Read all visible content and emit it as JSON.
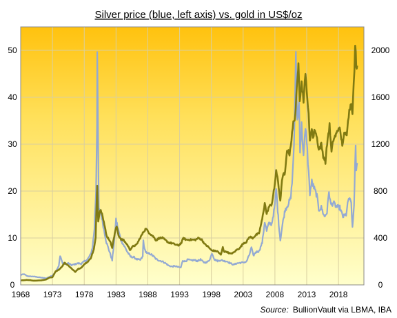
{
  "chart_data": {
    "type": "line",
    "title": "Silver price (blue, left axis) vs. gold in US$/oz",
    "source_label": "Source:",
    "source_text": "BullionVault via LBMA, IBA",
    "x_axis": {
      "range": [
        1968,
        2022
      ],
      "ticks": [
        1968,
        1973,
        1978,
        1983,
        1988,
        1993,
        1998,
        2003,
        2008,
        2013,
        2018
      ]
    },
    "y_left": {
      "range": [
        0,
        55
      ],
      "ticks": [
        0,
        10,
        20,
        30,
        40,
        50
      ]
    },
    "y_right": {
      "range": [
        0,
        2200
      ],
      "ticks": [
        0,
        400,
        800,
        1200,
        1600,
        2000
      ]
    },
    "grid": true,
    "colors": {
      "silver": "#93A9D3",
      "gold": "#807A12",
      "background_top": "#FFC20E",
      "background_bottom": "#FFFFCC",
      "grid": "#D9CFA0"
    },
    "series": [
      {
        "axis": "left",
        "points": [
          [
            1968.0,
            2.1
          ],
          [
            1968.5,
            2.3
          ],
          [
            1969.0,
            1.9
          ],
          [
            1969.5,
            1.8
          ],
          [
            1970.0,
            1.8
          ],
          [
            1970.5,
            1.7
          ],
          [
            1971.0,
            1.6
          ],
          [
            1971.5,
            1.5
          ],
          [
            1972.0,
            1.4
          ],
          [
            1972.5,
            1.7
          ],
          [
            1973.0,
            2.0
          ],
          [
            1973.5,
            2.8
          ],
          [
            1974.0,
            4.0
          ],
          [
            1974.2,
            6.3
          ],
          [
            1974.6,
            4.6
          ],
          [
            1975.0,
            4.4
          ],
          [
            1975.5,
            4.6
          ],
          [
            1976.0,
            4.2
          ],
          [
            1976.5,
            4.4
          ],
          [
            1977.0,
            4.6
          ],
          [
            1977.5,
            4.5
          ],
          [
            1978.0,
            5.0
          ],
          [
            1978.5,
            5.4
          ],
          [
            1979.0,
            6.5
          ],
          [
            1979.3,
            8.0
          ],
          [
            1979.6,
            12.0
          ],
          [
            1979.85,
            20.0
          ],
          [
            1980.0,
            34.0
          ],
          [
            1980.05,
            49.5
          ],
          [
            1980.15,
            35.0
          ],
          [
            1980.3,
            16.0
          ],
          [
            1980.6,
            15.5
          ],
          [
            1981.0,
            12.5
          ],
          [
            1981.5,
            9.0
          ],
          [
            1982.0,
            7.0
          ],
          [
            1982.4,
            5.2
          ],
          [
            1982.8,
            10.5
          ],
          [
            1983.0,
            14.0
          ],
          [
            1983.4,
            11.5
          ],
          [
            1983.8,
            9.5
          ],
          [
            1984.2,
            8.5
          ],
          [
            1984.8,
            7.0
          ],
          [
            1985.3,
            6.0
          ],
          [
            1985.8,
            5.9
          ],
          [
            1986.2,
            5.5
          ],
          [
            1986.8,
            5.3
          ],
          [
            1987.2,
            6.0
          ],
          [
            1987.3,
            9.5
          ],
          [
            1987.5,
            7.5
          ],
          [
            1987.9,
            6.7
          ],
          [
            1988.4,
            6.6
          ],
          [
            1988.9,
            6.1
          ],
          [
            1989.3,
            5.5
          ],
          [
            1989.8,
            5.2
          ],
          [
            1990.3,
            5.0
          ],
          [
            1990.8,
            4.6
          ],
          [
            1991.3,
            4.1
          ],
          [
            1991.8,
            3.9
          ],
          [
            1992.3,
            4.0
          ],
          [
            1992.8,
            3.8
          ],
          [
            1993.2,
            3.7
          ],
          [
            1993.5,
            5.2
          ],
          [
            1993.9,
            5.0
          ],
          [
            1994.3,
            5.4
          ],
          [
            1994.8,
            5.2
          ],
          [
            1995.3,
            5.3
          ],
          [
            1995.8,
            5.1
          ],
          [
            1996.3,
            5.4
          ],
          [
            1996.8,
            4.8
          ],
          [
            1997.3,
            4.8
          ],
          [
            1997.8,
            5.5
          ],
          [
            1998.1,
            6.8
          ],
          [
            1998.5,
            5.4
          ],
          [
            1999.0,
            5.1
          ],
          [
            1999.5,
            5.3
          ],
          [
            2000.0,
            5.1
          ],
          [
            2000.5,
            5.0
          ],
          [
            2001.0,
            4.6
          ],
          [
            2001.5,
            4.3
          ],
          [
            2002.0,
            4.6
          ],
          [
            2002.5,
            4.7
          ],
          [
            2003.0,
            4.8
          ],
          [
            2003.5,
            4.9
          ],
          [
            2004.0,
            6.5
          ],
          [
            2004.3,
            8.0
          ],
          [
            2004.6,
            6.2
          ],
          [
            2005.0,
            7.0
          ],
          [
            2005.5,
            7.2
          ],
          [
            2006.0,
            9.0
          ],
          [
            2006.4,
            13.5
          ],
          [
            2006.7,
            11.5
          ],
          [
            2007.0,
            13.0
          ],
          [
            2007.5,
            13.0
          ],
          [
            2008.0,
            17.0
          ],
          [
            2008.2,
            20.5
          ],
          [
            2008.6,
            13.0
          ],
          [
            2008.85,
            9.5
          ],
          [
            2009.2,
            13.0
          ],
          [
            2009.6,
            16.0
          ],
          [
            2010.0,
            17.0
          ],
          [
            2010.5,
            18.5
          ],
          [
            2010.8,
            24.0
          ],
          [
            2011.0,
            30.0
          ],
          [
            2011.3,
            48.5
          ],
          [
            2011.5,
            35.0
          ],
          [
            2011.8,
            39.0
          ],
          [
            2011.95,
            29.0
          ],
          [
            2012.2,
            34.0
          ],
          [
            2012.5,
            27.5
          ],
          [
            2012.8,
            33.0
          ],
          [
            2013.0,
            31.0
          ],
          [
            2013.3,
            24.0
          ],
          [
            2013.5,
            19.5
          ],
          [
            2013.8,
            22.0
          ],
          [
            2014.2,
            20.5
          ],
          [
            2014.6,
            19.0
          ],
          [
            2014.9,
            16.0
          ],
          [
            2015.3,
            16.5
          ],
          [
            2015.8,
            14.5
          ],
          [
            2016.2,
            15.5
          ],
          [
            2016.5,
            20.0
          ],
          [
            2016.8,
            17.0
          ],
          [
            2017.2,
            17.5
          ],
          [
            2017.7,
            16.6
          ],
          [
            2018.2,
            16.5
          ],
          [
            2018.7,
            14.5
          ],
          [
            2019.2,
            15.0
          ],
          [
            2019.6,
            18.5
          ],
          [
            2020.0,
            17.5
          ],
          [
            2020.2,
            12.0
          ],
          [
            2020.45,
            17.0
          ],
          [
            2020.6,
            25.5
          ],
          [
            2020.7,
            29.0
          ],
          [
            2020.8,
            24.0
          ],
          [
            2020.95,
            26.0
          ]
        ]
      },
      {
        "axis": "right",
        "points": [
          [
            1968.0,
            38
          ],
          [
            1968.5,
            40
          ],
          [
            1969.0,
            42
          ],
          [
            1969.5,
            40
          ],
          [
            1970.0,
            36
          ],
          [
            1970.5,
            36
          ],
          [
            1971.0,
            38
          ],
          [
            1971.5,
            41
          ],
          [
            1972.0,
            46
          ],
          [
            1972.5,
            62
          ],
          [
            1973.0,
            65
          ],
          [
            1973.5,
            115
          ],
          [
            1974.0,
            130
          ],
          [
            1974.5,
            155
          ],
          [
            1974.9,
            190
          ],
          [
            1975.5,
            165
          ],
          [
            1976.0,
            140
          ],
          [
            1976.6,
            110
          ],
          [
            1977.0,
            135
          ],
          [
            1977.5,
            145
          ],
          [
            1978.0,
            175
          ],
          [
            1978.5,
            195
          ],
          [
            1979.0,
            225
          ],
          [
            1979.5,
            300
          ],
          [
            1979.8,
            400
          ],
          [
            1980.0,
            800
          ],
          [
            1980.05,
            845
          ],
          [
            1980.2,
            550
          ],
          [
            1980.5,
            640
          ],
          [
            1980.8,
            620
          ],
          [
            1981.0,
            560
          ],
          [
            1981.5,
            420
          ],
          [
            1982.0,
            380
          ],
          [
            1982.4,
            320
          ],
          [
            1982.8,
            440
          ],
          [
            1983.1,
            500
          ],
          [
            1983.4,
            420
          ],
          [
            1983.8,
            390
          ],
          [
            1984.2,
            380
          ],
          [
            1984.8,
            340
          ],
          [
            1985.2,
            300
          ],
          [
            1985.7,
            330
          ],
          [
            1986.2,
            340
          ],
          [
            1986.8,
            400
          ],
          [
            1987.3,
            450
          ],
          [
            1987.7,
            480
          ],
          [
            1988.1,
            450
          ],
          [
            1988.5,
            430
          ],
          [
            1988.9,
            410
          ],
          [
            1989.3,
            380
          ],
          [
            1989.8,
            400
          ],
          [
            1990.3,
            400
          ],
          [
            1990.8,
            380
          ],
          [
            1991.3,
            360
          ],
          [
            1991.8,
            355
          ],
          [
            1992.3,
            345
          ],
          [
            1992.8,
            335
          ],
          [
            1993.3,
            360
          ],
          [
            1993.6,
            400
          ],
          [
            1994.0,
            385
          ],
          [
            1994.5,
            385
          ],
          [
            1995.0,
            385
          ],
          [
            1995.5,
            385
          ],
          [
            1996.0,
            400
          ],
          [
            1996.5,
            385
          ],
          [
            1997.0,
            345
          ],
          [
            1997.5,
            325
          ],
          [
            1998.0,
            295
          ],
          [
            1998.5,
            290
          ],
          [
            1999.0,
            285
          ],
          [
            1999.5,
            255
          ],
          [
            1999.8,
            320
          ],
          [
            2000.0,
            285
          ],
          [
            2000.5,
            280
          ],
          [
            2001.0,
            265
          ],
          [
            2001.5,
            275
          ],
          [
            2002.0,
            300
          ],
          [
            2002.5,
            315
          ],
          [
            2003.0,
            355
          ],
          [
            2003.5,
            365
          ],
          [
            2004.0,
            410
          ],
          [
            2004.5,
            400
          ],
          [
            2005.0,
            425
          ],
          [
            2005.5,
            440
          ],
          [
            2006.0,
            560
          ],
          [
            2006.4,
            700
          ],
          [
            2006.7,
            600
          ],
          [
            2007.0,
            660
          ],
          [
            2007.5,
            690
          ],
          [
            2007.9,
            820
          ],
          [
            2008.2,
            980
          ],
          [
            2008.5,
            870
          ],
          [
            2008.85,
            720
          ],
          [
            2009.2,
            930
          ],
          [
            2009.6,
            950
          ],
          [
            2009.9,
            1150
          ],
          [
            2010.3,
            1120
          ],
          [
            2010.6,
            1240
          ],
          [
            2010.9,
            1380
          ],
          [
            2011.2,
            1450
          ],
          [
            2011.6,
            1800
          ],
          [
            2011.7,
            1920
          ],
          [
            2011.9,
            1590
          ],
          [
            2012.2,
            1720
          ],
          [
            2012.5,
            1580
          ],
          [
            2012.8,
            1780
          ],
          [
            2013.0,
            1680
          ],
          [
            2013.3,
            1440
          ],
          [
            2013.5,
            1220
          ],
          [
            2013.8,
            1350
          ],
          [
            2014.0,
            1250
          ],
          [
            2014.3,
            1330
          ],
          [
            2014.7,
            1230
          ],
          [
            2014.9,
            1150
          ],
          [
            2015.3,
            1200
          ],
          [
            2015.6,
            1100
          ],
          [
            2015.95,
            1050
          ],
          [
            2016.3,
            1250
          ],
          [
            2016.6,
            1360
          ],
          [
            2016.9,
            1130
          ],
          [
            2017.2,
            1240
          ],
          [
            2017.7,
            1290
          ],
          [
            2018.1,
            1350
          ],
          [
            2018.6,
            1200
          ],
          [
            2018.9,
            1280
          ],
          [
            2019.3,
            1290
          ],
          [
            2019.5,
            1420
          ],
          [
            2019.8,
            1510
          ],
          [
            2020.0,
            1560
          ],
          [
            2020.2,
            1480
          ],
          [
            2020.4,
            1700
          ],
          [
            2020.6,
            1980
          ],
          [
            2020.65,
            2060
          ],
          [
            2020.8,
            1880
          ],
          [
            2020.95,
            1870
          ]
        ]
      }
    ]
  }
}
